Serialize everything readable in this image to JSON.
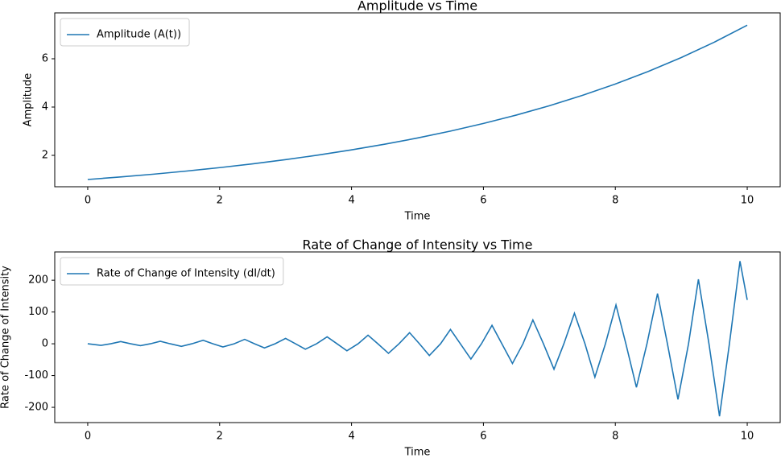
{
  "chart_data": [
    {
      "type": "line",
      "title": "Amplitude vs Time",
      "x_label": "Time",
      "y_label": "Amplitude",
      "x": [
        0,
        0.5,
        1,
        1.5,
        2,
        2.5,
        3,
        3.5,
        4,
        4.5,
        5,
        5.5,
        6,
        6.5,
        7,
        7.5,
        8,
        8.5,
        9,
        9.5,
        10
      ],
      "series": [
        {
          "name": "Amplitude (A(t))",
          "color": "#1f77b4",
          "values": [
            1,
            1.105,
            1.221,
            1.35,
            1.492,
            1.649,
            1.822,
            2.014,
            2.226,
            2.46,
            2.718,
            3.004,
            3.32,
            3.669,
            4.055,
            4.482,
            4.953,
            5.474,
            6.05,
            6.686,
            7.389
          ]
        }
      ],
      "xlim": [
        -0.5,
        10.5
      ],
      "xticks": [
        0,
        2,
        4,
        6,
        8,
        10
      ],
      "ylim": [
        0.7,
        7.9
      ],
      "yticks": [
        2,
        4,
        6
      ],
      "legend": "upper left",
      "grid": false
    },
    {
      "type": "line",
      "title": "Rate of Change of Intensity vs Time",
      "x_label": "Time",
      "y_label": "Rate of Change of Intensity",
      "x": [
        0,
        0.2,
        0.35,
        0.5,
        0.65,
        0.8,
        0.95,
        1.1,
        1.25,
        1.42,
        1.58,
        1.75,
        1.9,
        2.05,
        2.22,
        2.38,
        2.53,
        2.68,
        2.84,
        3.0,
        3.15,
        3.3,
        3.47,
        3.63,
        3.78,
        3.93,
        4.1,
        4.25,
        4.4,
        4.56,
        4.72,
        4.88,
        5.03,
        5.18,
        5.35,
        5.5,
        5.65,
        5.81,
        5.97,
        6.13,
        6.28,
        6.44,
        6.6,
        6.75,
        6.91,
        7.07,
        7.22,
        7.38,
        7.54,
        7.69,
        7.85,
        8.01,
        8.16,
        8.32,
        8.48,
        8.64,
        8.79,
        8.95,
        9.11,
        9.26,
        9.42,
        9.58,
        9.73,
        9.89,
        10
      ],
      "series": [
        {
          "name": "Rate of Change of Intensity (dI/dt)",
          "color": "#1f77b4",
          "values": [
            0,
            -5,
            0,
            7,
            0,
            -6,
            0,
            8,
            0,
            -8,
            0,
            11,
            0,
            -10,
            0,
            14,
            0,
            -13,
            0,
            17,
            0,
            -17,
            0,
            22,
            0,
            -22,
            0,
            27,
            0,
            -30,
            0,
            35,
            0,
            -37,
            0,
            45,
            0,
            -48,
            0,
            58,
            0,
            -62,
            0,
            75,
            0,
            -80,
            0,
            96,
            0,
            -105,
            0,
            122,
            0,
            -137,
            0,
            158,
            0,
            -175,
            0,
            203,
            0,
            -228,
            0,
            260,
            138
          ]
        }
      ],
      "xlim": [
        -0.5,
        10.5
      ],
      "xticks": [
        0,
        2,
        4,
        6,
        8,
        10
      ],
      "ylim": [
        -248,
        289
      ],
      "yticks": [
        -200,
        -100,
        0,
        100,
        200
      ],
      "legend": "upper left",
      "grid": false
    }
  ]
}
